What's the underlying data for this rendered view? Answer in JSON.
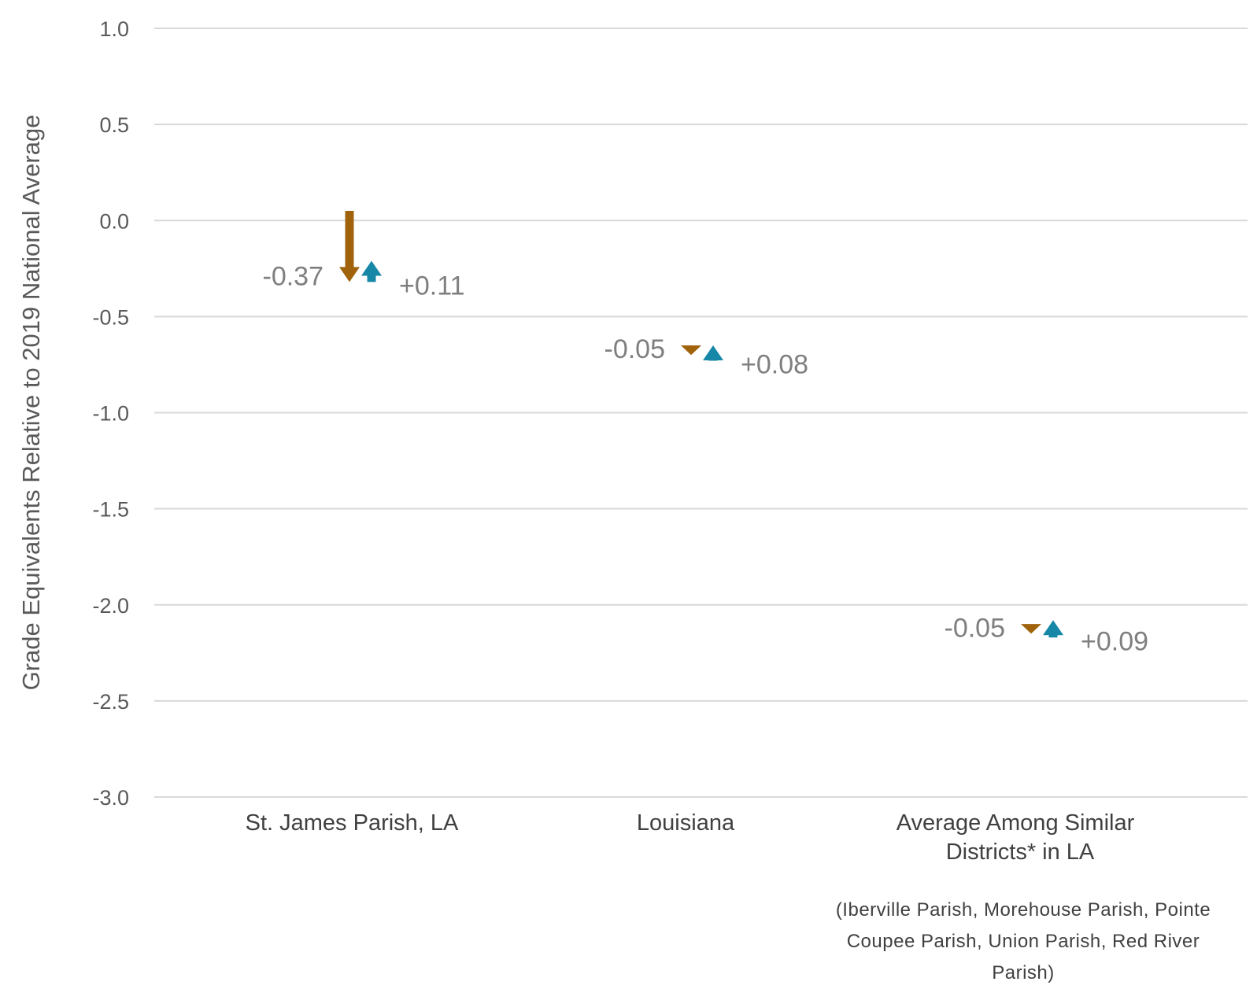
{
  "chart_data": {
    "type": "arrow",
    "ylabel": "Grade Equivalents Relative to 2019 National Average",
    "xlabel": "",
    "ylim": [
      -3.0,
      1.0
    ],
    "yticks": [
      1.0,
      0.5,
      0.0,
      -0.5,
      -1.0,
      -1.5,
      -2.0,
      -2.5,
      -3.0
    ],
    "ytick_labels": [
      "1.0",
      "0.5",
      "0.0",
      "-0.5",
      "-1.0",
      "-1.5",
      "-2.0",
      "-2.5",
      "-3.0"
    ],
    "grid": true,
    "categories": [
      {
        "label_lines": [
          "St. James Parish, LA"
        ],
        "note_lines": []
      },
      {
        "label_lines": [
          "Louisiana"
        ],
        "note_lines": []
      },
      {
        "label_lines": [
          "Average Among Similar",
          "Districts* in LA"
        ],
        "note_lines": [
          "(Iberville Parish, Morehouse Parish, Pointe",
          "Coupee Parish, Union Parish, Red River",
          "Parish)"
        ]
      }
    ],
    "series": [
      {
        "start": [
          0.05,
          -0.65,
          -2.1
        ],
        "change": [
          -0.37,
          -0.05,
          -0.05
        ],
        "labels": [
          "-0.37",
          "-0.05",
          "-0.05"
        ],
        "color": "#a0630b",
        "direction": "down"
      },
      {
        "start": [
          -0.32,
          -0.73,
          -2.17
        ],
        "change": [
          0.11,
          0.08,
          0.09
        ],
        "labels": [
          "+0.11",
          "+0.08",
          "+0.09"
        ],
        "color": "#1787a8",
        "direction": "up"
      }
    ]
  }
}
